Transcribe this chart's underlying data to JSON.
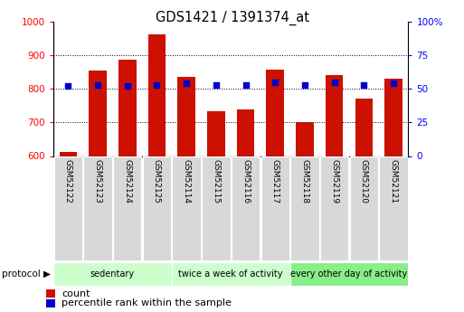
{
  "title": "GDS1421 / 1391374_at",
  "samples": [
    "GSM52122",
    "GSM52123",
    "GSM52124",
    "GSM52125",
    "GSM52114",
    "GSM52115",
    "GSM52116",
    "GSM52117",
    "GSM52118",
    "GSM52119",
    "GSM52120",
    "GSM52121"
  ],
  "count_values": [
    612,
    855,
    888,
    963,
    835,
    733,
    740,
    858,
    700,
    840,
    770,
    830
  ],
  "percentile_values": [
    52,
    53,
    52,
    53,
    54,
    53,
    53,
    55,
    53,
    55,
    53,
    54
  ],
  "groups": [
    {
      "label": "sedentary",
      "start": 0,
      "end": 4,
      "color": "#ccffcc"
    },
    {
      "label": "twice a week of activity",
      "start": 4,
      "end": 8,
      "color": "#ccffcc"
    },
    {
      "label": "every other day of activity",
      "start": 8,
      "end": 12,
      "color": "#88ee88"
    }
  ],
  "ylim_left": [
    600,
    1000
  ],
  "ylim_right": [
    0,
    100
  ],
  "yticks_left": [
    600,
    700,
    800,
    900,
    1000
  ],
  "yticks_right": [
    0,
    25,
    50,
    75,
    100
  ],
  "bar_color": "#cc1100",
  "dot_color": "#0000cc",
  "bar_bottom": 600,
  "background_color": "#ffffff",
  "plot_bg": "#ffffff",
  "legend_count_label": "count",
  "legend_pct_label": "percentile rank within the sample",
  "protocol_label": "protocol"
}
